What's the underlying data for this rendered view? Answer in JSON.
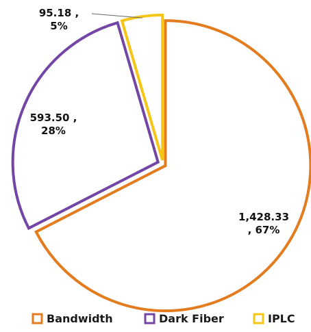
{
  "chart_data": {
    "type": "pie",
    "style": "exploded outline",
    "categories": [
      "Bandwidth",
      "Dark Fiber",
      "IPLC"
    ],
    "values": [
      1428.33,
      593.5,
      95.18
    ],
    "percentages": [
      67,
      28,
      5
    ],
    "data_labels": [
      {
        "line1": "1,428.33",
        "line2": ", 67%"
      },
      {
        "line1": "593.50 ,",
        "line2": "28%"
      },
      {
        "line1": "95.18 ,",
        "line2": "5%"
      }
    ],
    "colors": [
      "#E37B1F",
      "#7346A6",
      "#F5C518"
    ],
    "legend": {
      "placement": "bottom",
      "entries": [
        "Bandwidth",
        "Dark Fiber",
        "IPLC"
      ]
    },
    "title": "",
    "start_angle_deg": 0,
    "direction": "clockwise"
  }
}
